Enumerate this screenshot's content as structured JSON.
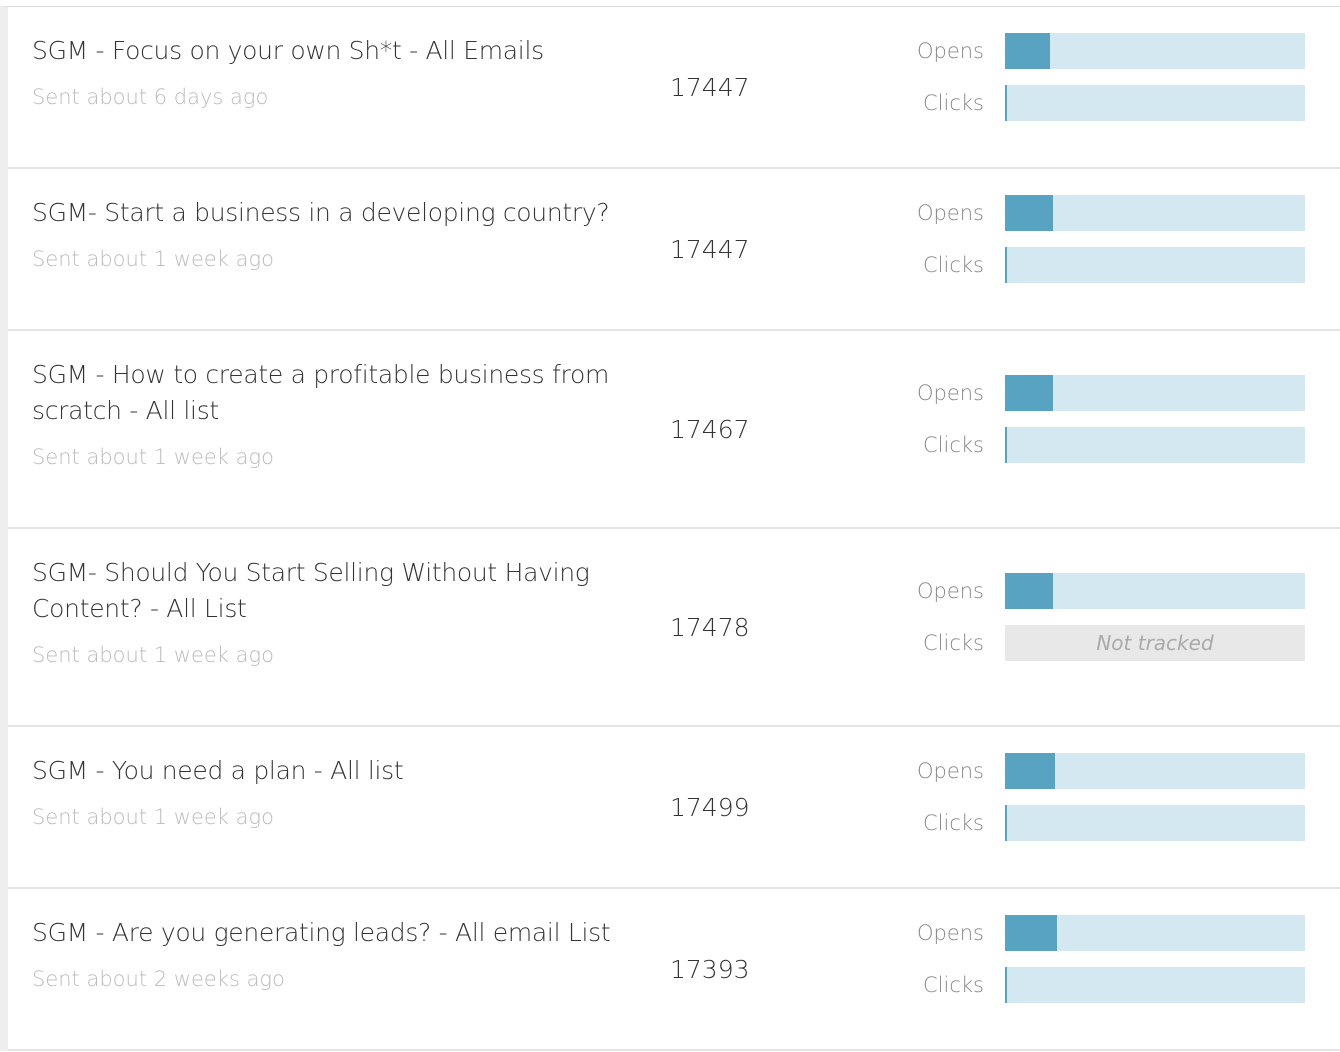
{
  "rows": [
    {
      "title": "SGM - Focus on your own Sh*t - All Emails",
      "sent": "Sent about 6 days ago",
      "recipients": 17447,
      "opens_label": "Opens",
      "opens": 15,
      "clicks_label": "Clicks",
      "clicks": 0.5
    },
    {
      "title": "SGM- Start a business in a developing country?",
      "sent": "Sent about 1 week ago",
      "recipients": 17447,
      "opens_label": "Opens",
      "opens": 16,
      "clicks_label": "Clicks",
      "clicks": 0.5
    },
    {
      "title": "SGM - How to create a profitable business from scratch - All list",
      "sent": "Sent about 1 week ago",
      "recipients": 17467,
      "opens_label": "Opens",
      "opens": 16,
      "clicks_label": "Clicks",
      "clicks": 0.5
    },
    {
      "title": "SGM- Should You Start Selling Without Having Content? - All List",
      "sent": "Sent about 1 week ago",
      "recipients": 17478,
      "opens_label": "Opens",
      "opens": 16,
      "clicks_label": "Clicks",
      "clicks": "Not tracked"
    },
    {
      "title": "SGM - You need a plan - All list",
      "sent": "Sent about 1 week ago",
      "recipients": 17499,
      "opens_label": "Opens",
      "opens": 16.7,
      "clicks_label": "Clicks",
      "clicks": 0.5
    },
    {
      "title": "SGM - Are you generating leads? - All email List",
      "sent": "Sent about 2 weeks ago",
      "recipients": 17393,
      "opens_label": "Opens",
      "opens": 17.3,
      "clicks_label": "Clicks",
      "clicks": 0.5
    }
  ]
}
